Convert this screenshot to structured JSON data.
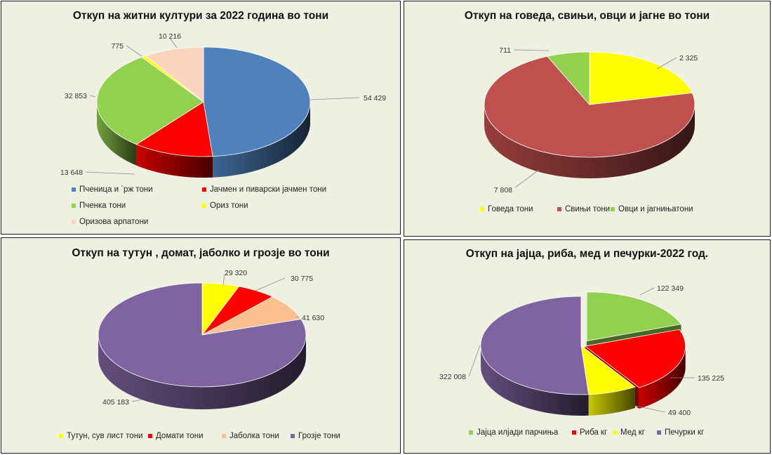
{
  "chart_data": [
    {
      "type": "pie",
      "title": "Откуп на житни култури за 2022 година во тони",
      "categories": [
        "Пченица и `рж тони",
        "Јачмен и пиварски јачмен  тони",
        "Пченка тони",
        "Ориз тони",
        "Оризова арпатони"
      ],
      "values": [
        54429,
        13648,
        32853,
        775,
        10216
      ],
      "data_labels": [
        "54 429",
        "13 648",
        "32 853",
        "775",
        "10 216"
      ],
      "colors": [
        "#4f81bd",
        "#ff0000",
        "#92d050",
        "#ffff00",
        "#fad4bc"
      ],
      "legend_position": "bottom"
    },
    {
      "type": "pie",
      "title": "Откуп на говеда, свињи, овци и јагне во тони",
      "categories": [
        "Говеда тони",
        "Свињи тони",
        "Овци и јагнињатони"
      ],
      "values": [
        2325,
        7808,
        711
      ],
      "data_labels": [
        "2 325",
        "7 808",
        "711"
      ],
      "colors": [
        "#ffff00",
        "#c0504d",
        "#92d050"
      ],
      "legend_position": "bottom"
    },
    {
      "type": "pie",
      "title": "Откуп на тутун , домат, јаболко и грозје во тони",
      "categories": [
        "Тутун, сув лист тони",
        "Домати   тони",
        "Јаболка тони",
        "Грозје тони"
      ],
      "values": [
        29320,
        30775,
        41630,
        405183
      ],
      "data_labels": [
        "29 320",
        "30 775",
        "41 630",
        "405 183"
      ],
      "colors": [
        "#ffff00",
        "#ff0000",
        "#fac090",
        "#8064a2"
      ],
      "legend_position": "bottom"
    },
    {
      "type": "pie",
      "title": "Откуп на јајца, риба, мед и печурки-2022 год.",
      "categories": [
        "Јајца илјади парчиња",
        "Риба кг",
        "Мед кг",
        "Печурки кг"
      ],
      "values": [
        122349,
        135225,
        49400,
        322008
      ],
      "data_labels": [
        "122 349",
        "135 225",
        "49 400",
        "322 008"
      ],
      "colors": [
        "#92d050",
        "#ff0000",
        "#ffff00",
        "#8064a2"
      ],
      "legend_position": "bottom"
    }
  ]
}
